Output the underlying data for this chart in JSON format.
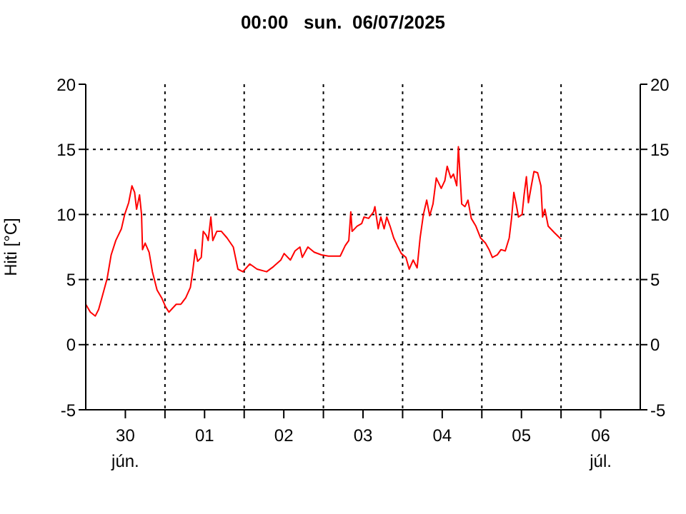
{
  "chart_data": {
    "type": "line",
    "title": "00:00   sun.  06/07/2025",
    "ylabel": "Hiti [°C]",
    "x": [
      "2025-06-30T00:00",
      "2025-06-30T01:24",
      "2025-06-30T02:54",
      "2025-06-30T03:54",
      "2025-06-30T05:06",
      "2025-06-30T06:30",
      "2025-06-30T07:42",
      "2025-06-30T09:06",
      "2025-06-30T10:48",
      "2025-06-30T11:48",
      "2025-06-30T13:00",
      "2025-06-30T14:00",
      "2025-06-30T14:48",
      "2025-06-30T15:24",
      "2025-06-30T16:18",
      "2025-06-30T16:54",
      "2025-06-30T17:12",
      "2025-06-30T18:00",
      "2025-06-30T19:12",
      "2025-06-30T20:12",
      "2025-06-30T21:36",
      "2025-06-30T23:00",
      "2025-07-01T00:12",
      "2025-07-01T01:12",
      "2025-07-01T03:24",
      "2025-07-01T04:48",
      "2025-07-01T06:18",
      "2025-07-01T07:42",
      "2025-07-01T08:24",
      "2025-07-01T09:12",
      "2025-07-01T09:54",
      "2025-07-01T11:00",
      "2025-07-01T11:36",
      "2025-07-01T12:30",
      "2025-07-01T13:06",
      "2025-07-01T13:54",
      "2025-07-01T14:30",
      "2025-07-01T15:42",
      "2025-07-01T17:06",
      "2025-07-01T18:48",
      "2025-07-01T20:42",
      "2025-07-01T22:06",
      "2025-07-01T23:36",
      "2025-07-02T01:42",
      "2025-07-02T03:54",
      "2025-07-02T06:48",
      "2025-07-02T08:54",
      "2025-07-02T11:06",
      "2025-07-02T12:06",
      "2025-07-02T14:00",
      "2025-07-02T15:24",
      "2025-07-02T16:54",
      "2025-07-02T17:36",
      "2025-07-02T19:18",
      "2025-07-02T21:12",
      "2025-07-02T23:24",
      "2025-07-03T01:30",
      "2025-07-03T05:06",
      "2025-07-03T06:36",
      "2025-07-03T07:42",
      "2025-07-03T08:18",
      "2025-07-03T08:42",
      "2025-07-03T10:12",
      "2025-07-03T11:36",
      "2025-07-03T12:18",
      "2025-07-03T13:42",
      "2025-07-03T15:12",
      "2025-07-03T15:36",
      "2025-07-03T16:36",
      "2025-07-03T17:24",
      "2025-07-03T18:24",
      "2025-07-03T19:12",
      "2025-07-03T20:12",
      "2025-07-03T21:18",
      "2025-07-03T22:24",
      "2025-07-03T23:36",
      "2025-07-04T01:00",
      "2025-07-04T02:00",
      "2025-07-04T03:12",
      "2025-07-04T04:24",
      "2025-07-04T05:18",
      "2025-07-04T06:18",
      "2025-07-04T07:18",
      "2025-07-04T08:12",
      "2025-07-04T09:12",
      "2025-07-04T10:12",
      "2025-07-04T11:42",
      "2025-07-04T12:48",
      "2025-07-04T13:30",
      "2025-07-04T14:36",
      "2025-07-04T15:24",
      "2025-07-04T16:24",
      "2025-07-04T16:54",
      "2025-07-04T17:54",
      "2025-07-04T18:54",
      "2025-07-04T19:48",
      "2025-07-04T20:48",
      "2025-07-04T22:12",
      "2025-07-04T23:36",
      "2025-07-05T01:06",
      "2025-07-05T02:12",
      "2025-07-05T03:12",
      "2025-07-05T04:42",
      "2025-07-05T05:48",
      "2025-07-05T07:06",
      "2025-07-05T08:18",
      "2025-07-05T09:00",
      "2025-07-05T09:42",
      "2025-07-05T10:24",
      "2025-07-05T11:06",
      "2025-07-05T12:12",
      "2025-07-05T12:48",
      "2025-07-05T13:30",
      "2025-07-05T14:06",
      "2025-07-05T15:00",
      "2025-07-05T15:48",
      "2025-07-05T16:54",
      "2025-07-05T17:54",
      "2025-07-05T18:24",
      "2025-07-05T19:06",
      "2025-07-05T20:06",
      "2025-07-05T22:00",
      "2025-07-06T00:00"
    ],
    "series": [
      {
        "color": "#ff0000",
        "values": [
          3.1,
          2.5,
          2.2,
          2.7,
          3.8,
          5.1,
          6.9,
          8,
          8.9,
          10,
          10.9,
          12.2,
          11.7,
          10.4,
          11.5,
          10,
          7.3,
          7.8,
          7.1,
          5.6,
          4.2,
          3.6,
          2.9,
          2.5,
          3.1,
          3.1,
          3.6,
          4.4,
          5.6,
          7.3,
          6.4,
          6.7,
          8.7,
          8.4,
          8,
          9.8,
          8,
          8.7,
          8.7,
          8.2,
          7.5,
          5.8,
          5.6,
          6.2,
          5.8,
          5.6,
          6,
          6.5,
          7,
          6.5,
          7.2,
          7.5,
          6.7,
          7.5,
          7.1,
          6.9,
          6.8,
          6.8,
          7.6,
          8,
          10.2,
          8.7,
          9.1,
          9.3,
          9.8,
          9.7,
          10.2,
          10.6,
          8.9,
          9.8,
          8.9,
          9.8,
          9.1,
          8.2,
          7.6,
          7,
          6.7,
          5.8,
          6.5,
          5.9,
          8.2,
          10,
          11.1,
          9.9,
          10.8,
          12.8,
          12,
          12.6,
          13.7,
          12.8,
          13.1,
          12.2,
          15.2,
          10.8,
          10.6,
          11.1,
          9.7,
          9.1,
          8.2,
          7.8,
          7.3,
          6.7,
          6.9,
          7.3,
          7.2,
          8.2,
          9.7,
          11.7,
          10.8,
          9.8,
          10,
          11.5,
          12.9,
          10.9,
          12.2,
          13.3,
          13.2,
          12.2,
          9.8,
          10.4,
          9.1,
          8.6,
          8.1
        ]
      }
    ],
    "xlim": [
      "2025-06-30T00:00",
      "2025-07-07T00:00"
    ],
    "xticks": [
      {
        "value": "2025-06-30T12:00",
        "label": "30\njún."
      },
      {
        "value": "2025-07-01T00:00",
        "label": null
      },
      {
        "value": "2025-07-01T12:00",
        "label": "01"
      },
      {
        "value": "2025-07-02T00:00",
        "label": null
      },
      {
        "value": "2025-07-02T12:00",
        "label": "02"
      },
      {
        "value": "2025-07-03T00:00",
        "label": null
      },
      {
        "value": "2025-07-03T12:00",
        "label": "03"
      },
      {
        "value": "2025-07-04T00:00",
        "label": null
      },
      {
        "value": "2025-07-04T12:00",
        "label": "04"
      },
      {
        "value": "2025-07-05T00:00",
        "label": null
      },
      {
        "value": "2025-07-05T12:00",
        "label": "05"
      },
      {
        "value": "2025-07-06T00:00",
        "label": null
      },
      {
        "value": "2025-07-06T12:00",
        "label": "06\njúl."
      }
    ],
    "ylim": [
      -5,
      20
    ],
    "yticks": [
      -5,
      0,
      5,
      10,
      15,
      20
    ],
    "y2lim": [
      -5,
      20
    ],
    "y2ticks": [
      -5,
      0,
      5,
      10,
      15,
      20
    ],
    "grid": true
  }
}
